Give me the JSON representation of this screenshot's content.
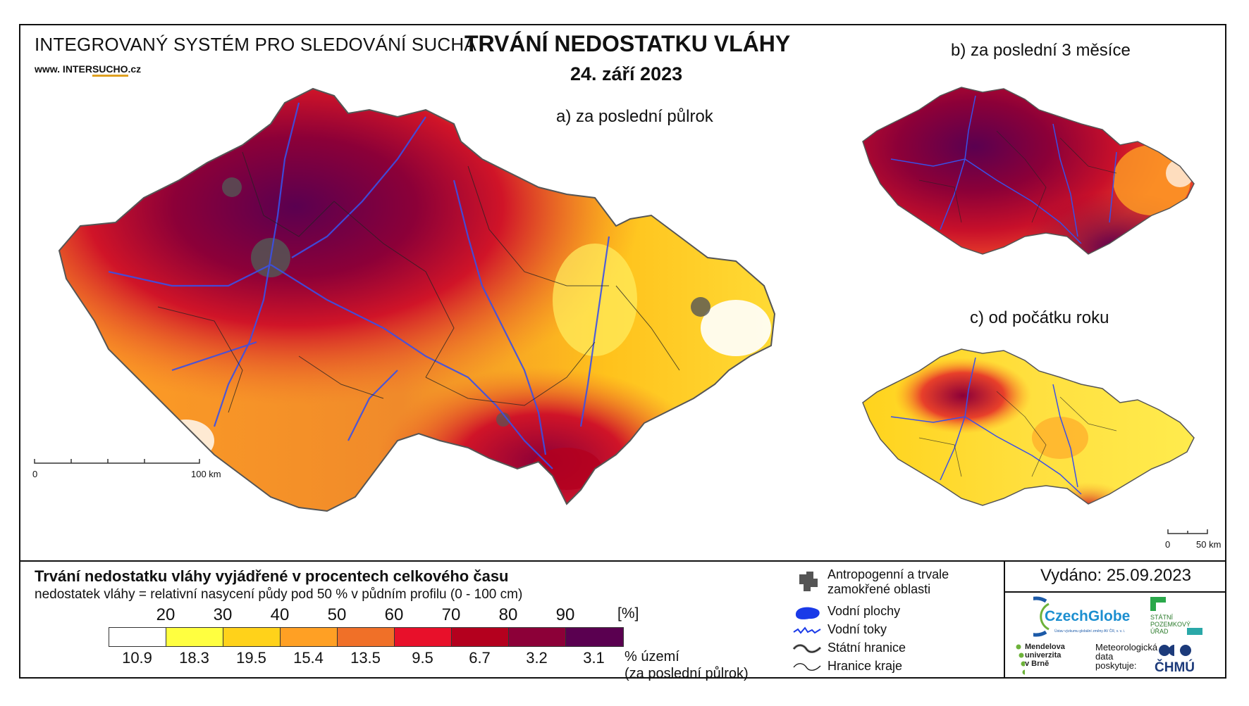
{
  "header": {
    "system_title": "INTEGROVANÝ SYSTÉM PRO SLEDOVÁNÍ SUCHA",
    "url_prefix": "www. INTER",
    "url_brand": "SUCHO",
    "url_suffix": ".cz",
    "title": "TRVÁNÍ NEDOSTATKU VLÁHY",
    "date": "24. září 2023"
  },
  "maps": {
    "a_label": "a) za poslední půlrok",
    "b_label": "b) za poslední 3 měsíce",
    "c_label": "c) od počátku roku",
    "scale_a_start": "0",
    "scale_a_end": "100 km",
    "scale_c_start": "0",
    "scale_c_end": "50 km"
  },
  "legend": {
    "title": "Trvání nedostatku vláhy vyjádřené v procentech celkového času",
    "subtitle": "nedostatek vláhy = relativní nasycení půdy pod 50 % v půdním profilu (0 - 100 cm)",
    "unit": "[%]",
    "thresholds": [
      "20",
      "30",
      "40",
      "50",
      "60",
      "70",
      "80",
      "90"
    ],
    "colors": [
      "#ffffff",
      "#ffff40",
      "#ffd21a",
      "#ffa024",
      "#f07028",
      "#e8102a",
      "#b4001e",
      "#8c0038",
      "#5a0050"
    ],
    "area_shares": [
      "10.9",
      "18.3",
      "19.5",
      "15.4",
      "13.5",
      "9.5",
      "6.7",
      "3.2",
      "3.1"
    ],
    "share_label_1": "% území",
    "share_label_2": "(za poslední půlrok)"
  },
  "symbols": {
    "anthropogenic_1": "Antropogenní a trvale",
    "anthropogenic_2": "zamokřené oblasti",
    "water_bodies": "Vodní plochy",
    "water_courses": "Vodní toky",
    "state_border": "Státní hranice",
    "region_border": "Hranice kraje"
  },
  "footer": {
    "issued": "Vydáno: 25.09.2023",
    "czechglobe": "CzechGlobe",
    "czechglobe_sub": "Ústav výzkumu globální změny AV ČR, v. v. i.",
    "spu_1": "STÁTNÍ",
    "spu_2": "POZEMKOVÝ",
    "spu_3": "ÚŘAD",
    "mendel_1": "Mendelova",
    "mendel_2": "univerzita",
    "mendel_3": "v Brně",
    "meteo_1": "Meteorologická",
    "meteo_2": "data",
    "meteo_3": "poskytuje:",
    "chmu": "ČHMÚ"
  }
}
